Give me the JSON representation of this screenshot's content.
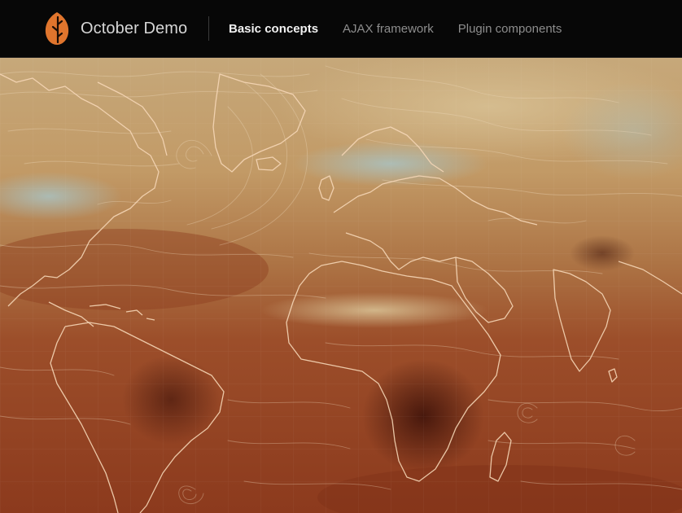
{
  "brand": {
    "title": "October Demo",
    "logo_icon": "leaf-logo-icon",
    "logo_color": "#e0752d"
  },
  "nav": {
    "items": [
      {
        "label": "Basic concepts",
        "active": true
      },
      {
        "label": "AJAX framework",
        "active": false
      },
      {
        "label": "Plugin components",
        "active": false
      }
    ]
  },
  "map": {
    "icon": "earth-wind-map",
    "colors": {
      "pale": "#c9ad7e",
      "tan": "#b98a55",
      "rust": "#9a4a26",
      "deep": "#5a1d10",
      "cyan": "#9fb6b6",
      "coast": "#f3d4b4"
    }
  }
}
